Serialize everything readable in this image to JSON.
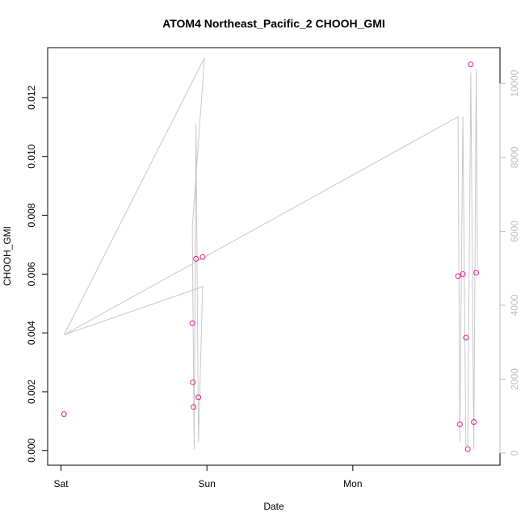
{
  "chart_data": {
    "type": "scatter",
    "title": "ATOM4 Northeast_Pacific_2 CHOOH_GMI",
    "xlabel": "Date",
    "ylabel": "CHOOH_GMI",
    "x_ticks": [
      "Sat",
      "Sun",
      "Mon"
    ],
    "x_tick_hours": [
      0,
      24,
      48
    ],
    "xlim_hours": [
      -2.2,
      72.2
    ],
    "ylim": [
      -0.0005,
      0.0137
    ],
    "y_ticks": [
      0.0,
      0.002,
      0.004,
      0.006,
      0.008,
      0.01,
      0.012
    ],
    "y_tick_labels": [
      "0.000",
      "0.002",
      "0.004",
      "0.006",
      "0.008",
      "0.010",
      "0.012"
    ],
    "y2lim": [
      -330,
      10970
    ],
    "y2_ticks": [
      0,
      2000,
      4000,
      6000,
      8000,
      10000
    ],
    "y2_tick_labels": [
      "0",
      "2000",
      "4000",
      "6000",
      "8000",
      "10000"
    ],
    "grid": false,
    "series": [
      {
        "kind": "points",
        "color": "#ee1a8c",
        "x_hours": [
          0.5,
          21.6,
          21.7,
          21.8,
          22.2,
          22.6,
          23.3,
          65.3,
          65.6,
          66.1,
          66.6,
          66.9,
          67.4,
          67.9,
          68.3
        ],
        "values": [
          0.00124,
          0.00433,
          0.00232,
          0.00148,
          0.00652,
          0.00181,
          0.00658,
          0.00593,
          0.00089,
          0.006,
          0.00384,
          5e-05,
          0.01313,
          0.00097,
          0.00605
        ]
      },
      {
        "kind": "line",
        "color": "#c8c8c8",
        "axis": "right",
        "x_hours": [
          0.5,
          23.6,
          21.6,
          21.9,
          22.2,
          22.6,
          23.3,
          0.5,
          65.3,
          65.6,
          66.1,
          66.6,
          66.9,
          67.4,
          67.9,
          68.3,
          68.5
        ],
        "values": [
          3200,
          10700,
          6100,
          100,
          8900,
          300,
          4500,
          3200,
          9100,
          300,
          9100,
          200,
          200,
          10300,
          100,
          10400,
          5000
        ]
      }
    ]
  }
}
